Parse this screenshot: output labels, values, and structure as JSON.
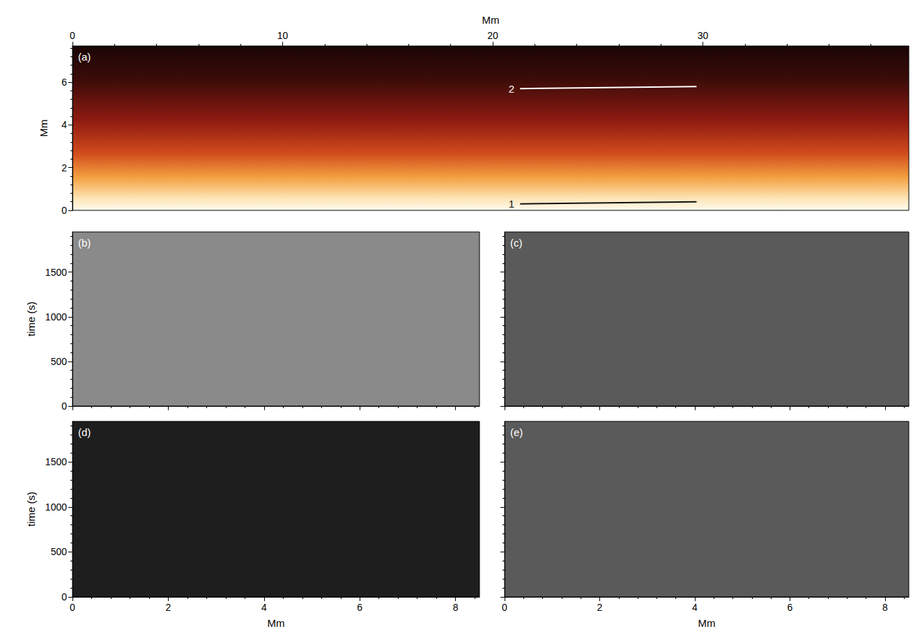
{
  "chart_data": [
    {
      "type": "image",
      "title": "(a)",
      "xlabel": "Mm",
      "ylabel": "Mm",
      "xlim": [
        0,
        39.8
      ],
      "xticks": [
        0,
        10,
        20,
        30
      ],
      "ylim": [
        0,
        7.7
      ],
      "yticks": [
        0,
        2,
        4,
        6
      ],
      "series": [
        {
          "name": "1",
          "color": "#111111",
          "x": [
            21.3,
            29.7
          ],
          "y": [
            0.3,
            0.4
          ]
        },
        {
          "name": "2",
          "color": "#ffffff",
          "x": [
            21.3,
            29.7
          ],
          "y": [
            5.7,
            5.8
          ]
        }
      ]
    },
    {
      "type": "image",
      "title": "(b)",
      "color": "#8a8a8a",
      "ylabel": "time (s)",
      "xlim": [
        0,
        8.5
      ],
      "xticks": [
        0,
        2,
        4,
        6,
        8
      ],
      "ylim": [
        0,
        1950
      ],
      "yticks": [
        0,
        500,
        1000,
        1500
      ],
      "tick_labels": "y"
    },
    {
      "type": "image",
      "title": "(c)",
      "color": "#5a5a5a",
      "xlim": [
        0,
        8.5
      ],
      "xticks": [
        0,
        2,
        4,
        6,
        8
      ],
      "ylim": [
        0,
        1950
      ],
      "yticks": [
        0,
        500,
        1000,
        1500
      ],
      "tick_labels": false
    },
    {
      "type": "image",
      "title": "(d)",
      "color": "#1e1e1e",
      "xlabel": "Mm",
      "ylabel": "time (s)",
      "xlim": [
        0,
        8.5
      ],
      "xticks": [
        0,
        2,
        4,
        6,
        8
      ],
      "ylim": [
        0,
        1950
      ],
      "yticks": [
        0,
        500,
        1000,
        1500
      ]
    },
    {
      "type": "image",
      "title": "(e)",
      "color": "#5a5a5a",
      "xlabel": "Mm",
      "xlim": [
        0,
        8.5
      ],
      "xticks": [
        0,
        2,
        4,
        6,
        8
      ],
      "ylim": [
        0,
        1950
      ],
      "yticks": [
        0,
        500,
        1000,
        1500
      ],
      "tick_labels": "x"
    }
  ]
}
